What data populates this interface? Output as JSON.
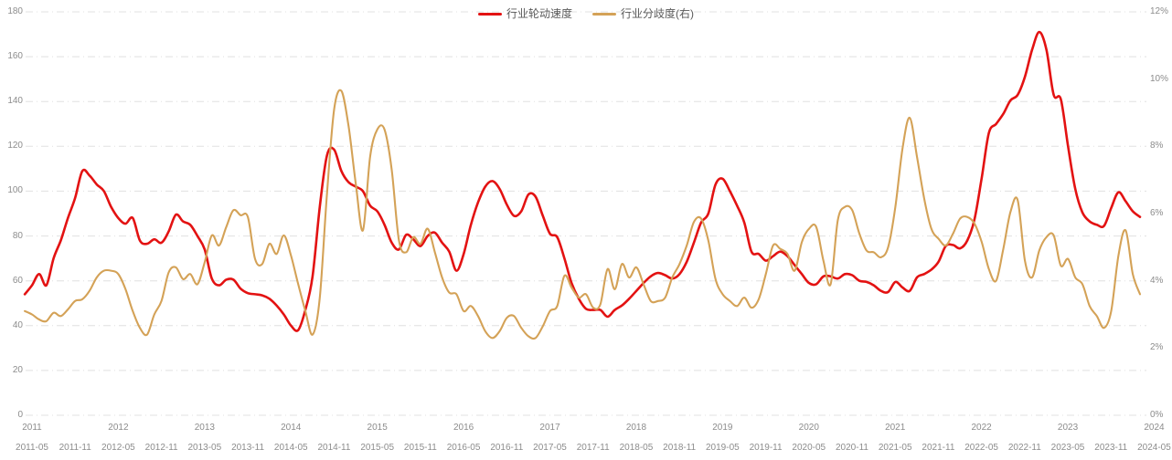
{
  "legend": {
    "items": [
      {
        "label": "行业轮动速度",
        "color": "#e31212"
      },
      {
        "label": "行业分歧度(右)",
        "color": "#d4a257"
      }
    ]
  },
  "chart_data": {
    "type": "line",
    "title": "",
    "grid": "horizontal dash-dot lines",
    "grid_color": "#e0e0e0",
    "axis_label_color": "#8c8c8c",
    "left_axis": {
      "min": 0,
      "max": 180,
      "ticks": [
        0,
        20,
        40,
        60,
        80,
        100,
        120,
        140,
        160,
        180
      ]
    },
    "right_axis": {
      "min": 0,
      "max": 12,
      "ticks": [
        "0%",
        "2%",
        "4%",
        "6%",
        "8%",
        "10%",
        "12%"
      ],
      "tick_values": [
        0,
        2,
        4,
        6,
        8,
        10,
        12
      ]
    },
    "x_axis": {
      "year_labels": [
        "2011",
        "2012",
        "2013",
        "2014",
        "2015",
        "2016",
        "2017",
        "2018",
        "2019",
        "2020",
        "2021",
        "2022",
        "2023",
        "2024"
      ],
      "month_tick_labels": [
        "2011-05",
        "2011-11",
        "2012-05",
        "2012-11",
        "2013-05",
        "2013-11",
        "2014-05",
        "2014-11",
        "2015-05",
        "2015-11",
        "2016-05",
        "2016-11",
        "2017-05",
        "2017-11",
        "2018-05",
        "2018-11",
        "2019-05",
        "2019-11",
        "2020-05",
        "2020-11",
        "2021-05",
        "2021-11",
        "2022-05",
        "2022-11",
        "2023-05",
        "2023-11",
        "2024-05"
      ]
    },
    "months": [
      "2011-04",
      "2011-05",
      "2011-06",
      "2011-07",
      "2011-08",
      "2011-09",
      "2011-10",
      "2011-11",
      "2011-12",
      "2012-01",
      "2012-02",
      "2012-03",
      "2012-04",
      "2012-05",
      "2012-06",
      "2012-07",
      "2012-08",
      "2012-09",
      "2012-10",
      "2012-11",
      "2012-12",
      "2013-01",
      "2013-02",
      "2013-03",
      "2013-04",
      "2013-05",
      "2013-06",
      "2013-07",
      "2013-08",
      "2013-09",
      "2013-10",
      "2013-11",
      "2013-12",
      "2014-01",
      "2014-02",
      "2014-03",
      "2014-04",
      "2014-05",
      "2014-06",
      "2014-07",
      "2014-08",
      "2014-09",
      "2014-10",
      "2014-11",
      "2014-12",
      "2015-01",
      "2015-02",
      "2015-03",
      "2015-04",
      "2015-05",
      "2015-06",
      "2015-07",
      "2015-08",
      "2015-09",
      "2015-10",
      "2015-11",
      "2015-12",
      "2016-01",
      "2016-02",
      "2016-03",
      "2016-04",
      "2016-05",
      "2016-06",
      "2016-07",
      "2016-08",
      "2016-09",
      "2016-10",
      "2016-11",
      "2016-12",
      "2017-01",
      "2017-02",
      "2017-03",
      "2017-04",
      "2017-05",
      "2017-06",
      "2017-07",
      "2017-08",
      "2017-09",
      "2017-10",
      "2017-11",
      "2017-12",
      "2018-01",
      "2018-02",
      "2018-03",
      "2018-04",
      "2018-05",
      "2018-06",
      "2018-07",
      "2018-08",
      "2018-09",
      "2018-10",
      "2018-11",
      "2018-12",
      "2019-01",
      "2019-02",
      "2019-03",
      "2019-04",
      "2019-05",
      "2019-06",
      "2019-07",
      "2019-08",
      "2019-09",
      "2019-10",
      "2019-11",
      "2019-12",
      "2020-01",
      "2020-02",
      "2020-03",
      "2020-04",
      "2020-05",
      "2020-06",
      "2020-07",
      "2020-08",
      "2020-09",
      "2020-10",
      "2020-11",
      "2020-12",
      "2021-01",
      "2021-02",
      "2021-03",
      "2021-04",
      "2021-05",
      "2021-06",
      "2021-07",
      "2021-08",
      "2021-09",
      "2021-10",
      "2021-11",
      "2021-12",
      "2022-01",
      "2022-02",
      "2022-03",
      "2022-04",
      "2022-05",
      "2022-06",
      "2022-07",
      "2022-08",
      "2022-09",
      "2022-10",
      "2022-11",
      "2022-12",
      "2023-01",
      "2023-02",
      "2023-03",
      "2023-04",
      "2023-05",
      "2023-06",
      "2023-07",
      "2023-08",
      "2023-09",
      "2023-10",
      "2023-11",
      "2023-12",
      "2024-01",
      "2024-02",
      "2024-03"
    ],
    "series": [
      {
        "name": "行业轮动速度",
        "axis": "left",
        "color": "#e31212",
        "values": [
          54,
          58,
          63,
          58,
          70,
          78,
          88,
          97,
          109,
          107,
          103,
          100,
          93,
          88,
          85.5,
          88,
          78,
          76.5,
          78.5,
          77,
          82,
          89.5,
          86.5,
          85,
          80,
          74,
          61,
          58,
          60.5,
          60.5,
          56.5,
          54.5,
          54,
          53.5,
          52,
          49,
          45,
          40,
          38,
          47,
          62,
          93,
          116,
          118.5,
          109,
          104,
          102,
          100,
          93.5,
          91,
          85,
          77,
          74,
          80.5,
          78.5,
          75.5,
          80,
          81.5,
          77,
          73,
          64.5,
          72,
          85,
          95,
          102,
          104.5,
          101,
          94,
          89,
          91,
          98.5,
          97.5,
          89,
          81,
          79.5,
          70,
          59,
          52,
          47.5,
          47,
          47,
          44,
          47,
          49,
          52,
          55.5,
          59,
          62,
          63.5,
          62.5,
          61,
          63,
          68.5,
          77,
          86,
          90,
          103,
          105.5,
          100,
          93.5,
          86,
          73,
          72,
          69,
          71,
          73,
          71,
          67,
          63,
          59,
          58.5,
          62,
          62,
          61,
          63,
          62.5,
          60,
          59.5,
          58,
          55.5,
          55,
          59.5,
          57,
          55.5,
          61.5,
          63,
          65,
          68.5,
          75.5,
          76,
          74.5,
          78,
          87.5,
          106,
          126,
          130,
          134.5,
          140.5,
          143,
          151,
          163,
          171,
          163,
          143,
          141,
          120,
          101,
          90.5,
          86.5,
          85,
          84.5,
          92.5,
          99.5,
          95.5,
          91,
          88.5
        ]
      },
      {
        "name": "行业分歧度(右)",
        "axis": "right",
        "color": "#d4a257",
        "values": [
          3.1,
          3.0,
          2.85,
          2.8,
          3.05,
          2.95,
          3.15,
          3.4,
          3.45,
          3.7,
          4.1,
          4.3,
          4.3,
          4.2,
          3.75,
          3.1,
          2.6,
          2.4,
          3.0,
          3.4,
          4.25,
          4.4,
          4.05,
          4.2,
          3.9,
          4.55,
          5.35,
          5.05,
          5.6,
          6.1,
          5.95,
          5.9,
          4.65,
          4.5,
          5.1,
          4.8,
          5.35,
          4.75,
          3.9,
          3.1,
          2.4,
          3.5,
          6.6,
          9.1,
          9.65,
          8.6,
          6.9,
          5.5,
          7.7,
          8.5,
          8.5,
          7.3,
          5.2,
          4.85,
          5.3,
          5.1,
          5.55,
          4.85,
          4.1,
          3.65,
          3.6,
          3.1,
          3.25,
          2.95,
          2.5,
          2.3,
          2.5,
          2.9,
          2.95,
          2.6,
          2.35,
          2.3,
          2.65,
          3.1,
          3.25,
          4.15,
          3.8,
          3.5,
          3.6,
          3.2,
          3.3,
          4.35,
          3.75,
          4.5,
          4.1,
          4.4,
          3.9,
          3.4,
          3.4,
          3.5,
          4.1,
          4.5,
          5.05,
          5.75,
          5.85,
          5.2,
          4.05,
          3.6,
          3.4,
          3.25,
          3.5,
          3.2,
          3.45,
          4.2,
          5.05,
          4.95,
          4.8,
          4.3,
          5.15,
          5.55,
          5.6,
          4.6,
          3.9,
          5.8,
          6.2,
          6.1,
          5.4,
          4.9,
          4.85,
          4.7,
          5.0,
          6.2,
          7.95,
          8.85,
          7.7,
          6.45,
          5.55,
          5.25,
          5.05,
          5.4,
          5.85,
          5.9,
          5.7,
          5.15,
          4.35,
          4.0,
          4.95,
          6.05,
          6.4,
          4.6,
          4.1,
          4.9,
          5.3,
          5.35,
          4.45,
          4.65,
          4.1,
          3.9,
          3.25,
          2.95,
          2.6,
          3.1,
          4.75,
          5.5,
          4.2,
          3.6
        ]
      }
    ]
  }
}
